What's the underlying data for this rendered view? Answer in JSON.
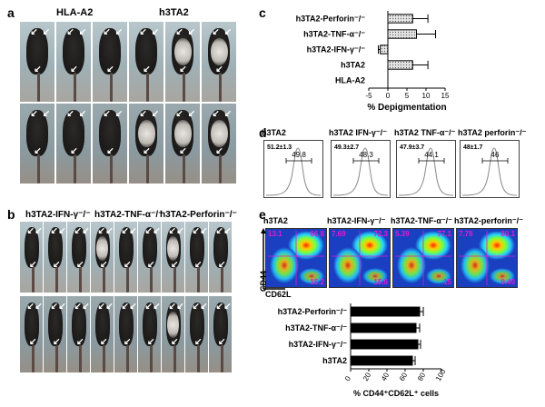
{
  "panel_a": {
    "letter": "a",
    "groups": [
      "HLA-A2",
      "h3TA2"
    ]
  },
  "panel_b": {
    "letter": "b",
    "groups": [
      "h3TA2-IFN-γ⁻/⁻",
      "h3TA2-TNF-α⁻/⁻",
      "h3TA2-Perforin⁻/⁻"
    ]
  },
  "panel_c": {
    "letter": "c",
    "chart_data": {
      "type": "bar",
      "orientation": "horizontal",
      "categories": [
        "h3TA2-Perforin⁻/⁻",
        "h3TA2-TNF-α⁻/⁻",
        "h3TA2-IFN-γ⁻/⁻",
        "h3TA2",
        "HLA-A2"
      ],
      "values": [
        6.5,
        7.5,
        -2,
        6.5,
        0
      ],
      "errors": [
        4,
        5,
        0.5,
        4,
        0
      ],
      "xlabel": "% Depigmentation",
      "xlim": [
        -5,
        15
      ],
      "xticks": [
        "-5",
        "0",
        "5",
        "10",
        "15"
      ],
      "bar_fill": "dotted light gray"
    }
  },
  "panel_d": {
    "letter": "d",
    "plots": [
      {
        "title": "h3TA2",
        "stat": "51.2±1.3",
        "gate": "49.8"
      },
      {
        "title": "h3TA2 IFN-γ⁻/⁻",
        "stat": "49.3±2.7",
        "gate": "48.3"
      },
      {
        "title": "h3TA2 TNF-α⁻/⁻",
        "stat": "47.9±3.7",
        "gate": "44.1"
      },
      {
        "title": "h3TA2 perforin⁻/⁻",
        "stat": "48±1.7",
        "gate": "46"
      }
    ]
  },
  "panel_e": {
    "letter": "e",
    "y_axis": "CD44",
    "x_axis": "CD62L",
    "plots": [
      {
        "title": "h3TA2",
        "ul": "13.1",
        "ur": "66.8",
        "lr": "15.2"
      },
      {
        "title": "h3TA2-IFN-γ⁻/⁻",
        "ul": "7.69",
        "ur": "72.3",
        "lr": "15.6"
      },
      {
        "title": "h3TA2-TNF-α⁻/⁻",
        "ul": "5.39",
        "ur": "77.1",
        "lr": "15"
      },
      {
        "title": "h3TA2-perforin⁻/⁻",
        "ul": "7.78",
        "ur": "80.1",
        "lr": "9.49"
      }
    ],
    "chart_data": {
      "type": "bar",
      "orientation": "horizontal",
      "categories": [
        "h3TA2-Perforin⁻/⁻",
        "h3TA2-TNF-α⁻/⁻",
        "h3TA2-IFN-γ⁻/⁻",
        "h3TA2"
      ],
      "values": [
        76,
        72,
        74,
        68
      ],
      "errors": [
        4,
        4,
        3,
        3
      ],
      "xlabel": "% CD44⁺CD62L⁺ cells",
      "xlim": [
        0,
        100
      ],
      "xticks": [
        "0",
        "20",
        "40",
        "60",
        "80",
        "100"
      ],
      "bar_fill": "#000000"
    }
  },
  "colors": {
    "gate_text": "#e31bd0",
    "flow_bg": "#1a3fc0"
  }
}
